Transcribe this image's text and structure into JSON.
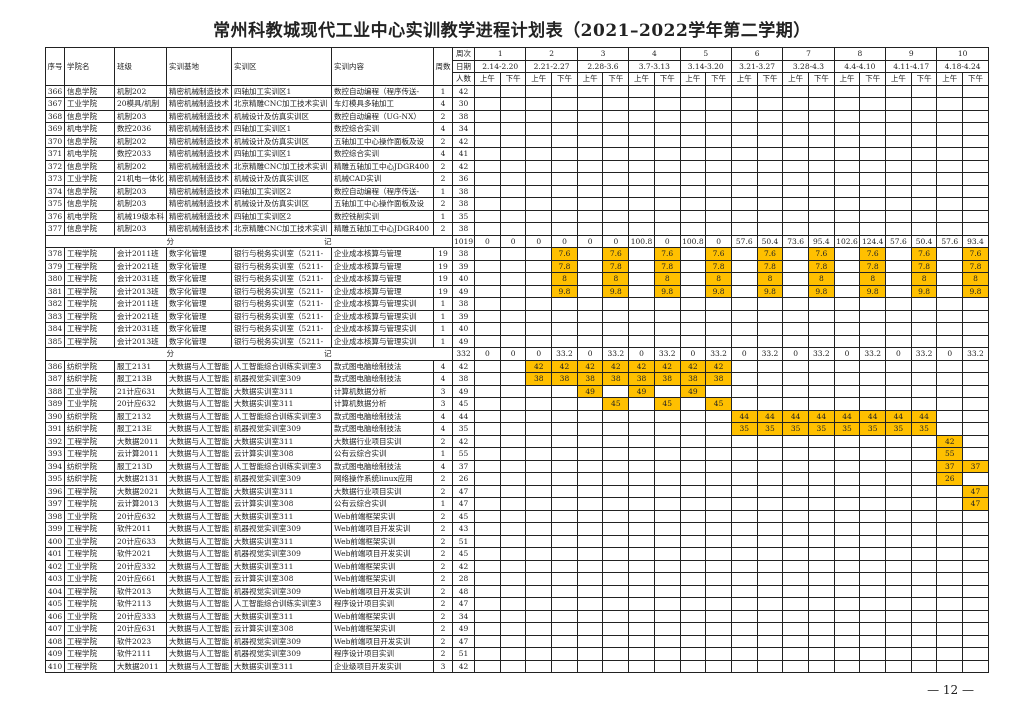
{
  "title": "常州科教城现代工业中心实训教学进程计划表（2021–2022学年第二学期）",
  "page_number": "— 12 —",
  "colors": {
    "highlight": "#FFC000"
  },
  "header": {
    "seq": "序号",
    "college": "学院名",
    "class": "班级",
    "base": "实训基地",
    "area": "实训区",
    "content": "实训内容",
    "weeks_count": "周数",
    "week_no": "周次",
    "date": "日期",
    "people": "人数",
    "am": "上午",
    "pm": "下午",
    "weeks": [
      {
        "n": "1",
        "d": "2.14-2.20"
      },
      {
        "n": "2",
        "d": "2.21-2.27"
      },
      {
        "n": "3",
        "d": "2.28-3.6"
      },
      {
        "n": "4",
        "d": "3.7-3.13"
      },
      {
        "n": "5",
        "d": "3.14-3.20"
      },
      {
        "n": "6",
        "d": "3.21-3.27"
      },
      {
        "n": "7",
        "d": "3.28-4.3"
      },
      {
        "n": "8",
        "d": "4.4-4.10"
      },
      {
        "n": "9",
        "d": "4.11-4.17"
      },
      {
        "n": "10",
        "d": "4.18-4.24"
      }
    ]
  },
  "rows": [
    {
      "id": "366",
      "college": "信息学院",
      "class": "机制202",
      "base": "精密机械制造技术",
      "area": "四轴加工实训区1",
      "content": "数控自动编程（程序传送-",
      "weeks": "1",
      "people": "42",
      "cells": []
    },
    {
      "id": "367",
      "college": "工业学院",
      "class": "20模具/机制",
      "base": "精密机械制造技术",
      "area": "北京精雕CNC加工技术实训",
      "content": "车灯模具多轴加工",
      "weeks": "4",
      "people": "30",
      "cells": []
    },
    {
      "id": "368",
      "college": "信息学院",
      "class": "机制203",
      "base": "精密机械制造技术",
      "area": "机械设计及仿真实训区",
      "content": "数控自动编程（UG-NX）",
      "weeks": "2",
      "people": "38",
      "cells": []
    },
    {
      "id": "369",
      "college": "机电学院",
      "class": "数控2036",
      "base": "精密机械制造技术",
      "area": "四轴加工实训区1",
      "content": "数控综合实训",
      "weeks": "4",
      "people": "34",
      "cells": []
    },
    {
      "id": "370",
      "college": "信息学院",
      "class": "机制202",
      "base": "精密机械制造技术",
      "area": "机械设计及仿真实训区",
      "content": "五轴加工中心操作面板及设",
      "weeks": "2",
      "people": "42",
      "cells": []
    },
    {
      "id": "371",
      "college": "机电学院",
      "class": "数控2033",
      "base": "精密机械制造技术",
      "area": "四轴加工实训区1",
      "content": "数控综合实训",
      "weeks": "4",
      "people": "41",
      "cells": []
    },
    {
      "id": "372",
      "college": "信息学院",
      "class": "机制202",
      "base": "精密机械制造技术",
      "area": "北京精雕CNC加工技术实训",
      "content": "精雕五轴加工中心JDGR400",
      "weeks": "2",
      "people": "42",
      "cells": []
    },
    {
      "id": "373",
      "college": "工业学院",
      "class": "21机电一体化",
      "base": "精密机械制造技术",
      "area": "机械设计及仿真实训区",
      "content": "机械CAD实训",
      "weeks": "2",
      "people": "36",
      "cells": []
    },
    {
      "id": "374",
      "college": "信息学院",
      "class": "机制203",
      "base": "精密机械制造技术",
      "area": "四轴加工实训区2",
      "content": "数控自动编程（程序传送-",
      "weeks": "1",
      "people": "38",
      "cells": []
    },
    {
      "id": "375",
      "college": "信息学院",
      "class": "机制203",
      "base": "精密机械制造技术",
      "area": "机械设计及仿真实训区",
      "content": "五轴加工中心操作面板及设",
      "weeks": "2",
      "people": "38",
      "cells": []
    },
    {
      "id": "376",
      "college": "机电学院",
      "class": "机械19级本科",
      "base": "精密机械制造技术",
      "area": "四轴加工实训区2",
      "content": "数控铣削实训",
      "weeks": "1",
      "people": "35",
      "cells": []
    },
    {
      "id": "377",
      "college": "信息学院",
      "class": "机制203",
      "base": "精密机械制造技术",
      "area": "北京精雕CNC加工技术实训",
      "content": "精雕五轴加工中心JDGR400",
      "weeks": "2",
      "people": "38",
      "cells": []
    },
    {
      "subtotal": true,
      "l1": "分",
      "l2": "记",
      "people": "1019",
      "cells": [
        "0",
        "0",
        "0",
        "0",
        "0",
        "0",
        "100.8",
        "0",
        "100.8",
        "0",
        "57.6",
        "50.4",
        "73.6",
        "95.4",
        "102.6",
        "124.4",
        "57.6",
        "50.4",
        "57.6",
        "93.4"
      ]
    },
    {
      "id": "378",
      "college": "工程学院",
      "class": "会计2011班",
      "base": "数字化管理",
      "area": "银行与税务实训室（5211-",
      "content": "企业成本核算与管理",
      "weeks": "19",
      "people": "38",
      "cells": [
        "",
        "",
        "",
        "7.6",
        "",
        "7.6",
        "",
        "7.6",
        "",
        "7.6",
        "",
        "7.6",
        "",
        "7.6",
        "",
        "7.6",
        "",
        "7.6",
        "",
        "7.6"
      ]
    },
    {
      "id": "379",
      "college": "工程学院",
      "class": "会计2021班",
      "base": "数字化管理",
      "area": "银行与税务实训室（5211-",
      "content": "企业成本核算与管理",
      "weeks": "19",
      "people": "39",
      "cells": [
        "",
        "",
        "",
        "7.8",
        "",
        "7.8",
        "",
        "7.8",
        "",
        "7.8",
        "",
        "7.8",
        "",
        "7.8",
        "",
        "7.8",
        "",
        "7.8",
        "",
        "7.8"
      ]
    },
    {
      "id": "380",
      "college": "工程学院",
      "class": "会计2031班",
      "base": "数字化管理",
      "area": "银行与税务实训室（5211-",
      "content": "企业成本核算与管理",
      "weeks": "19",
      "people": "40",
      "cells": [
        "",
        "",
        "",
        "8",
        "",
        "8",
        "",
        "8",
        "",
        "8",
        "",
        "8",
        "",
        "8",
        "",
        "8",
        "",
        "8",
        "",
        "8"
      ]
    },
    {
      "id": "381",
      "college": "工程学院",
      "class": "会计2013班",
      "base": "数字化管理",
      "area": "银行与税务实训室（5211-",
      "content": "企业成本核算与管理",
      "weeks": "19",
      "people": "49",
      "cells": [
        "",
        "",
        "",
        "9.8",
        "",
        "9.8",
        "",
        "9.8",
        "",
        "9.8",
        "",
        "9.8",
        "",
        "9.8",
        "",
        "9.8",
        "",
        "9.8",
        "",
        "9.8"
      ]
    },
    {
      "id": "382",
      "college": "工程学院",
      "class": "会计2011班",
      "base": "数字化管理",
      "area": "银行与税务实训室（5211-",
      "content": "企业成本核算与管理实训",
      "weeks": "1",
      "people": "38",
      "cells": []
    },
    {
      "id": "383",
      "college": "工程学院",
      "class": "会计2021班",
      "base": "数字化管理",
      "area": "银行与税务实训室（5211-",
      "content": "企业成本核算与管理实训",
      "weeks": "1",
      "people": "39",
      "cells": []
    },
    {
      "id": "384",
      "college": "工程学院",
      "class": "会计2031班",
      "base": "数字化管理",
      "area": "银行与税务实训室（5211-",
      "content": "企业成本核算与管理实训",
      "weeks": "1",
      "people": "40",
      "cells": []
    },
    {
      "id": "385",
      "college": "工程学院",
      "class": "会计2013班",
      "base": "数字化管理",
      "area": "银行与税务实训室（5211-",
      "content": "企业成本核算与管理实训",
      "weeks": "1",
      "people": "49",
      "cells": []
    },
    {
      "subtotal": true,
      "l1": "分",
      "l2": "记",
      "people": "332",
      "cells": [
        "0",
        "0",
        "0",
        "33.2",
        "0",
        "33.2",
        "0",
        "33.2",
        "0",
        "33.2",
        "0",
        "33.2",
        "0",
        "33.2",
        "0",
        "33.2",
        "0",
        "33.2",
        "0",
        "33.2"
      ]
    },
    {
      "id": "386",
      "college": "纺织学院",
      "class": "服工2131",
      "base": "大数据与人工智能",
      "area": "人工智能综合训练实训室3",
      "content": "款式图电脑绘制技法",
      "weeks": "4",
      "people": "42",
      "cells": [
        "",
        "",
        "42",
        "42",
        "42",
        "42",
        "42",
        "42",
        "42",
        "42"
      ]
    },
    {
      "id": "387",
      "college": "纺织学院",
      "class": "服工213B",
      "base": "大数据与人工智能",
      "area": "机器视觉实训室309",
      "content": "款式图电脑绘制技法",
      "weeks": "4",
      "people": "38",
      "cells": [
        "",
        "",
        "38",
        "38",
        "38",
        "38",
        "38",
        "38",
        "38",
        "38"
      ]
    },
    {
      "id": "388",
      "college": "工业学院",
      "class": "21计应631",
      "base": "大数据与人工智能",
      "area": "大数据实训室311",
      "content": "计算机数据分析",
      "weeks": "3",
      "people": "49",
      "cells": [
        "",
        "",
        "",
        "",
        "49",
        "",
        "49",
        "",
        "49"
      ]
    },
    {
      "id": "389",
      "college": "工业学院",
      "class": "20计应632",
      "base": "大数据与人工智能",
      "area": "大数据实训室311",
      "content": "计算机数据分析",
      "weeks": "3",
      "people": "45",
      "cells": [
        "",
        "",
        "",
        "",
        "",
        "45",
        "",
        "45",
        "",
        "45"
      ]
    },
    {
      "id": "390",
      "college": "纺织学院",
      "class": "服工2132",
      "base": "大数据与人工智能",
      "area": "人工智能综合训练实训室3",
      "content": "款式图电脑绘制技法",
      "weeks": "4",
      "people": "44",
      "cells": [
        "",
        "",
        "",
        "",
        "",
        "",
        "",
        "",
        "",
        "",
        "44",
        "44",
        "44",
        "44",
        "44",
        "44",
        "44",
        "44"
      ]
    },
    {
      "id": "391",
      "college": "纺织学院",
      "class": "服工213E",
      "base": "大数据与人工智能",
      "area": "机器视觉实训室309",
      "content": "款式图电脑绘制技法",
      "weeks": "4",
      "people": "35",
      "cells": [
        "",
        "",
        "",
        "",
        "",
        "",
        "",
        "",
        "",
        "",
        "35",
        "35",
        "35",
        "35",
        "35",
        "35",
        "35",
        "35"
      ]
    },
    {
      "id": "392",
      "college": "工程学院",
      "class": "大数据2011",
      "base": "大数据与人工智能",
      "area": "大数据实训室311",
      "content": "大数据行业项目实训",
      "weeks": "2",
      "people": "42",
      "cells": [
        "",
        "",
        "",
        "",
        "",
        "",
        "",
        "",
        "",
        "",
        "",
        "",
        "",
        "",
        "",
        "",
        "",
        "",
        "42"
      ]
    },
    {
      "id": "393",
      "college": "工程学院",
      "class": "云计算2011",
      "base": "大数据与人工智能",
      "area": "云计算实训室308",
      "content": "公有云综合实训",
      "weeks": "1",
      "people": "55",
      "cells": [
        "",
        "",
        "",
        "",
        "",
        "",
        "",
        "",
        "",
        "",
        "",
        "",
        "",
        "",
        "",
        "",
        "",
        "",
        "55"
      ]
    },
    {
      "id": "394",
      "college": "纺织学院",
      "class": "服工213D",
      "base": "大数据与人工智能",
      "area": "人工智能综合训练实训室3",
      "content": "款式图电脑绘制技法",
      "weeks": "4",
      "people": "37",
      "cells": [
        "",
        "",
        "",
        "",
        "",
        "",
        "",
        "",
        "",
        "",
        "",
        "",
        "",
        "",
        "",
        "",
        "",
        "",
        "37",
        "37"
      ]
    },
    {
      "id": "395",
      "college": "纺织学院",
      "class": "大数据2131",
      "base": "大数据与人工智能",
      "area": "机器视觉实训室309",
      "content": "网络操作系统linux应用",
      "weeks": "2",
      "people": "26",
      "cells": [
        "",
        "",
        "",
        "",
        "",
        "",
        "",
        "",
        "",
        "",
        "",
        "",
        "",
        "",
        "",
        "",
        "",
        "",
        "26"
      ]
    },
    {
      "id": "396",
      "college": "工程学院",
      "class": "大数据2021",
      "base": "大数据与人工智能",
      "area": "大数据实训室311",
      "content": "大数据行业项目实训",
      "weeks": "2",
      "people": "47",
      "cells": [
        "",
        "",
        "",
        "",
        "",
        "",
        "",
        "",
        "",
        "",
        "",
        "",
        "",
        "",
        "",
        "",
        "",
        "",
        "",
        "47"
      ]
    },
    {
      "id": "397",
      "college": "工程学院",
      "class": "云计算2013",
      "base": "大数据与人工智能",
      "area": "云计算实训室308",
      "content": "公有云综合实训",
      "weeks": "1",
      "people": "47",
      "cells": [
        "",
        "",
        "",
        "",
        "",
        "",
        "",
        "",
        "",
        "",
        "",
        "",
        "",
        "",
        "",
        "",
        "",
        "",
        "",
        "47"
      ]
    },
    {
      "id": "398",
      "college": "工业学院",
      "class": "20计应632",
      "base": "大数据与人工智能",
      "area": "大数据实训室311",
      "content": "Web前端框架实训",
      "weeks": "2",
      "people": "45",
      "cells": []
    },
    {
      "id": "399",
      "college": "工程学院",
      "class": "软件2011",
      "base": "大数据与人工智能",
      "area": "机器视觉实训室309",
      "content": "Web前端项目开发实训",
      "weeks": "2",
      "people": "43",
      "cells": []
    },
    {
      "id": "400",
      "college": "工业学院",
      "class": "20计应633",
      "base": "大数据与人工智能",
      "area": "大数据实训室311",
      "content": "Web前端框架实训",
      "weeks": "2",
      "people": "51",
      "cells": []
    },
    {
      "id": "401",
      "college": "工程学院",
      "class": "软件2021",
      "base": "大数据与人工智能",
      "area": "机器视觉实训室309",
      "content": "Web前端项目开发实训",
      "weeks": "2",
      "people": "45",
      "cells": []
    },
    {
      "id": "402",
      "college": "工业学院",
      "class": "20计应332",
      "base": "大数据与人工智能",
      "area": "大数据实训室311",
      "content": "Web前端框架实训",
      "weeks": "2",
      "people": "42",
      "cells": []
    },
    {
      "id": "403",
      "college": "工业学院",
      "class": "20计应661",
      "base": "大数据与人工智能",
      "area": "云计算实训室308",
      "content": "Web前端框架实训",
      "weeks": "2",
      "people": "28",
      "cells": []
    },
    {
      "id": "404",
      "college": "工程学院",
      "class": "软件2013",
      "base": "大数据与人工智能",
      "area": "机器视觉实训室309",
      "content": "Web前端项目开发实训",
      "weeks": "2",
      "people": "48",
      "cells": []
    },
    {
      "id": "405",
      "college": "工程学院",
      "class": "软件2113",
      "base": "大数据与人工智能",
      "area": "人工智能综合训练实训室3",
      "content": "程序设计项目实训",
      "weeks": "2",
      "people": "47",
      "cells": []
    },
    {
      "id": "406",
      "college": "工业学院",
      "class": "20计应333",
      "base": "大数据与人工智能",
      "area": "大数据实训室311",
      "content": "Web前端框架实训",
      "weeks": "2",
      "people": "34",
      "cells": []
    },
    {
      "id": "407",
      "college": "工业学院",
      "class": "20计应631",
      "base": "大数据与人工智能",
      "area": "云计算实训室308",
      "content": "Web前端框架实训",
      "weeks": "2",
      "people": "49",
      "cells": []
    },
    {
      "id": "408",
      "college": "工程学院",
      "class": "软件2023",
      "base": "大数据与人工智能",
      "area": "机器视觉实训室309",
      "content": "Web前端项目开发实训",
      "weeks": "2",
      "people": "47",
      "cells": []
    },
    {
      "id": "409",
      "college": "工程学院",
      "class": "软件2111",
      "base": "大数据与人工智能",
      "area": "机器视觉实训室309",
      "content": "程序设计项目实训",
      "weeks": "2",
      "people": "51",
      "cells": []
    },
    {
      "id": "410",
      "college": "工程学院",
      "class": "大数据2011",
      "base": "大数据与人工智能",
      "area": "大数据实训室311",
      "content": "企业级项目开发实训",
      "weeks": "3",
      "people": "42",
      "cells": []
    }
  ]
}
